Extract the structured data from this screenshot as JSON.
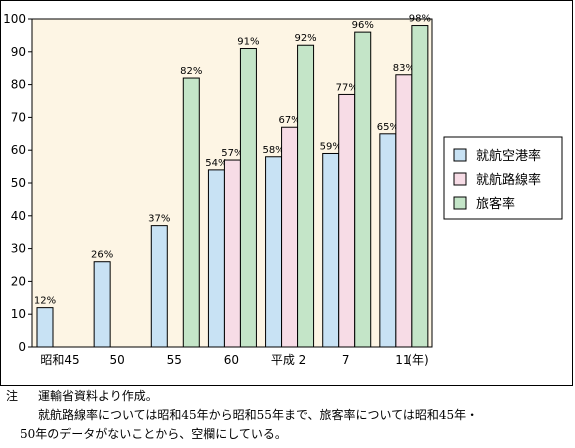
{
  "chart_data": {
    "type": "bar",
    "categories": [
      "昭和45",
      "50",
      "55",
      "60",
      "平成 2",
      "7",
      "11"
    ],
    "x_unit": "(年)",
    "series": [
      {
        "name": "就航空港率",
        "color": "#c8e2f4",
        "values": [
          12,
          26,
          37,
          54,
          58,
          59,
          65
        ],
        "labels": [
          "12%",
          "26%",
          "37%",
          "54%",
          "58%",
          "59%",
          "65%"
        ]
      },
      {
        "name": "就航路線率",
        "color": "#f7dce6",
        "values": [
          null,
          null,
          null,
          57,
          67,
          77,
          83
        ],
        "labels": [
          "",
          "",
          "",
          "57%",
          "67%",
          "77%",
          "83%"
        ]
      },
      {
        "name": "旅客率",
        "color": "#c4e5c8",
        "values": [
          null,
          null,
          82,
          91,
          92,
          96,
          98
        ],
        "labels": [
          "",
          "",
          "82%",
          "91%",
          "92%",
          "96%",
          "98%"
        ]
      }
    ],
    "ylim": [
      0,
      100
    ],
    "yticks": [
      0,
      10,
      20,
      30,
      40,
      50,
      60,
      70,
      80,
      90,
      100
    ],
    "plot_background": "#fdf5e4",
    "legend_position": "right"
  },
  "notes": {
    "mark": "注",
    "line1": "運輸省資料より作成。",
    "line2": "就航路線率については昭和45年から昭和55年まで、旅客率については昭和45年・",
    "line3": "50年のデータがないことから、空欄にしている。"
  }
}
